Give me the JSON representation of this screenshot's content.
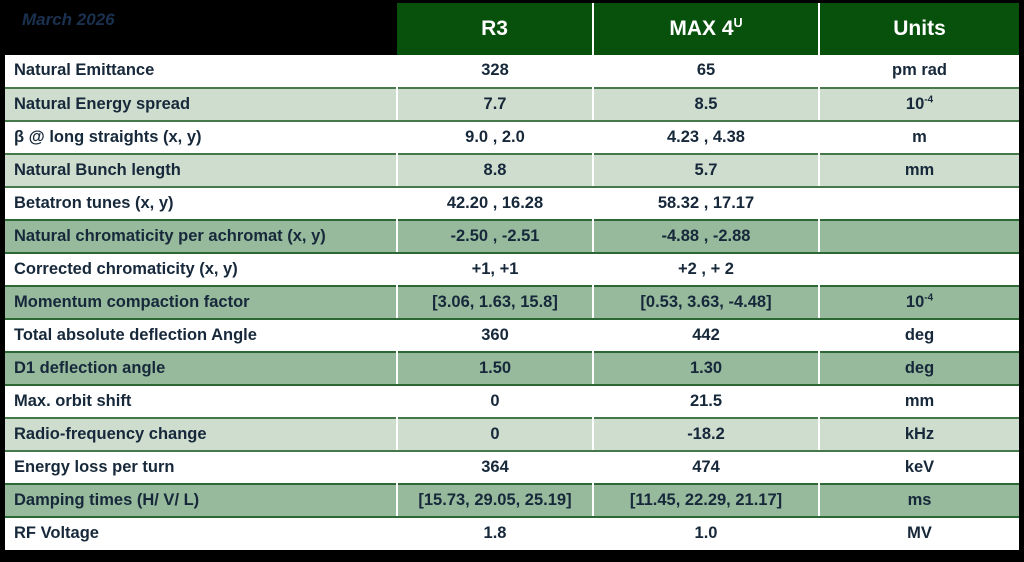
{
  "header": {
    "date": "March 2026",
    "col_r3": "R3",
    "col_max4u_base": "MAX 4",
    "col_max4u_sup": "U",
    "col_units": "Units"
  },
  "rows": [
    {
      "label": "Natural Emittance",
      "r3": "328",
      "max4u": "65",
      "units": "pm rad"
    },
    {
      "label": "Natural Energy spread",
      "r3": "7.7",
      "max4u": "8.5",
      "units": "10",
      "units_sup": "-4"
    },
    {
      "label": "β @ long straights (x, y)",
      "r3": "9.0 , 2.0",
      "max4u": "4.23 , 4.38",
      "units": "m"
    },
    {
      "label": "Natural Bunch length",
      "r3": "8.8",
      "max4u": "5.7",
      "units": "mm"
    },
    {
      "label": "Betatron tunes (x, y)",
      "r3": "42.20 , 16.28",
      "max4u": "58.32 , 17.17",
      "units": ""
    },
    {
      "label": "Natural chromaticity per achromat (x, y)",
      "r3": "-2.50 , -2.51",
      "max4u": "-4.88 , -2.88",
      "units": ""
    },
    {
      "label": "Corrected chromaticity (x, y)",
      "r3": "+1, +1",
      "max4u": "+2 , + 2",
      "units": ""
    },
    {
      "label": "Momentum compaction factor",
      "r3": "[3.06, 1.63, 15.8]",
      "max4u": "[0.53, 3.63, -4.48]",
      "units": "10",
      "units_sup": "-4"
    },
    {
      "label": "Total absolute deflection Angle",
      "r3": "360",
      "max4u": "442",
      "units": "deg"
    },
    {
      "label": "D1 deflection angle",
      "r3": "1.50",
      "max4u": "1.30",
      "units": "deg"
    },
    {
      "label": "Max. orbit shift",
      "r3": "0",
      "max4u": "21.5",
      "units": "mm"
    },
    {
      "label": "Radio-frequency change",
      "r3": "0",
      "max4u": "-18.2",
      "units": "kHz"
    },
    {
      "label": "Energy loss per turn",
      "r3": "364",
      "max4u": "474",
      "units": "keV"
    },
    {
      "label": "Damping times (H/ V/ L)",
      "r3": "[15.73, 29.05, 25.19]",
      "max4u": "[11.45, 22.29, 21.17]",
      "units": "ms"
    },
    {
      "label": "RF Voltage",
      "r3": "1.8",
      "max4u": "1.0",
      "units": "MV"
    }
  ],
  "colors": {
    "frame_black": "#000000",
    "header_green": "#07510c",
    "light_row_green": "#ceddce",
    "medium_row_green": "#97ba9d",
    "light_row_border": "#45784a",
    "medium_row_border": "#2d6834",
    "text_navy": "#16283a",
    "date_navy": "#1b3150",
    "header_text": "#ffffff"
  }
}
